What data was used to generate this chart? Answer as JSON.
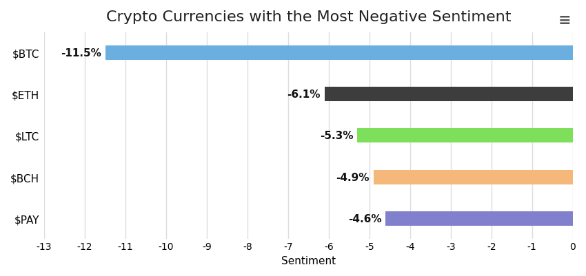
{
  "title": "Crypto Currencies with the Most Negative Sentiment",
  "xlabel": "Sentiment",
  "categories": [
    "$BTC",
    "$ETH",
    "$LTC",
    "$BCH",
    "$PAY"
  ],
  "values": [
    -11.5,
    -6.1,
    -5.3,
    -4.9,
    -4.6
  ],
  "labels": [
    "-11.5%",
    "-6.1%",
    "-5.3%",
    "-4.9%",
    "-4.6%"
  ],
  "bar_colors": [
    "#6aafe0",
    "#3d3d3d",
    "#7edf5b",
    "#f5b87a",
    "#8080cc"
  ],
  "xlim": [
    -13,
    0
  ],
  "xticks": [
    -13,
    -12,
    -11,
    -10,
    -9,
    -8,
    -7,
    -6,
    -5,
    -4,
    -3,
    -2,
    -1,
    0
  ],
  "background_color": "#ffffff",
  "grid_color": "#dddddd",
  "title_fontsize": 16,
  "axis_label_fontsize": 11,
  "ytick_fontsize": 11,
  "xtick_fontsize": 10,
  "bar_height": 0.35,
  "label_fontsize": 11,
  "label_color": "#111111",
  "hamburger_char": "≡"
}
